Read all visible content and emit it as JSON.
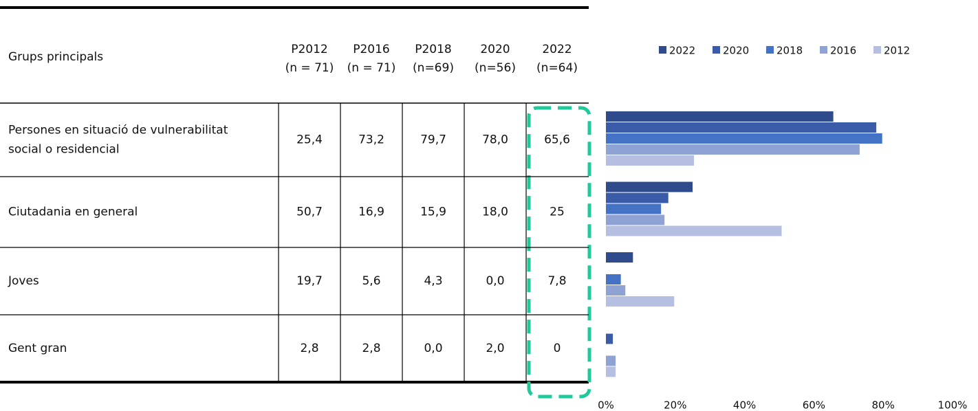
{
  "table": {
    "header": {
      "label": "Grups principals",
      "columns": [
        [
          "P2012",
          "(n = 71)"
        ],
        [
          "P2016",
          "(n = 71)"
        ],
        [
          "P2018",
          "(n=69)"
        ],
        [
          "2020",
          "(n=56)"
        ],
        [
          "2022",
          "(n=64)"
        ]
      ]
    },
    "rows": [
      {
        "label": [
          "Persones en situació de vulnerabilitat",
          "social o residencial"
        ],
        "cells": [
          "25,4",
          "73,2",
          "79,7",
          "78,0",
          "65,6"
        ]
      },
      {
        "label": [
          "Ciutadania en general"
        ],
        "cells": [
          "50,7",
          "16,9",
          "15,9",
          "18,0",
          "25"
        ]
      },
      {
        "label": [
          "Joves"
        ],
        "cells": [
          "19,7",
          "5,6",
          "4,3",
          "0,0",
          "7,8"
        ]
      },
      {
        "label": [
          "Gent gran"
        ],
        "cells": [
          "2,8",
          "2,8",
          "0,0",
          "2,0",
          "0"
        ]
      }
    ]
  },
  "chart_data": {
    "type": "barh",
    "categories": [
      null,
      null,
      null,
      null
    ],
    "series": [
      {
        "name": "2022",
        "color": "#2f4b8c",
        "values": [
          65.6,
          25,
          7.8,
          0
        ]
      },
      {
        "name": "2020",
        "color": "#3a5ca8",
        "values": [
          78.0,
          18.0,
          0.0,
          2.0
        ]
      },
      {
        "name": "2018",
        "color": "#4472c4",
        "values": [
          79.7,
          15.9,
          4.3,
          0.0
        ]
      },
      {
        "name": "2016",
        "color": "#8fa2d4",
        "values": [
          73.2,
          16.9,
          5.6,
          2.8
        ]
      },
      {
        "name": "2012",
        "color": "#b4bfe2",
        "values": [
          25.4,
          50.7,
          19.7,
          2.8
        ]
      }
    ],
    "xlim": [
      0,
      100
    ],
    "xticks": [
      {
        "value": 0,
        "label": "0%"
      },
      {
        "value": 20,
        "label": "20%"
      },
      {
        "value": 40,
        "label": "40%"
      },
      {
        "value": 60,
        "label": "60%"
      },
      {
        "value": 80,
        "label": "80%"
      },
      {
        "value": 100,
        "label": "100%"
      }
    ],
    "legend": "top"
  }
}
